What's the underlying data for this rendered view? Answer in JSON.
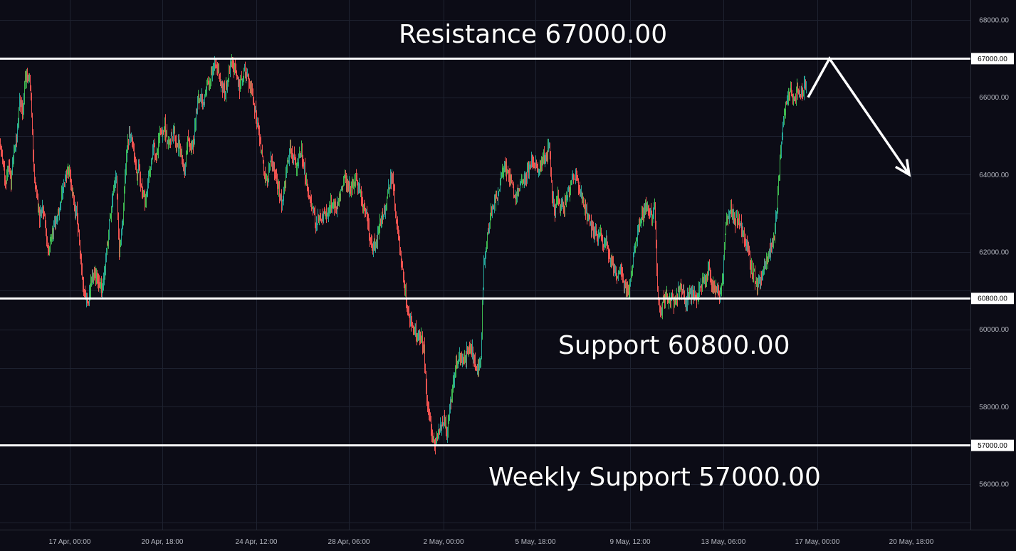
{
  "chart_data": {
    "type": "candlestick",
    "ylim": [
      54800,
      68400
    ],
    "y_ticks": [
      "68000.00",
      "66000.00",
      "64000.00",
      "62000.00",
      "60000.00",
      "58000.00",
      "56000.00"
    ],
    "y_tick_values": [
      68000,
      66000,
      64000,
      62000,
      60000,
      58000,
      56000
    ],
    "x_ticks": [
      "17 Apr, 00:00",
      "20 Apr, 18:00",
      "24 Apr, 12:00",
      "28 Apr, 06:00",
      "2 May, 00:00",
      "5 May, 18:00",
      "9 May, 12:00",
      "13 May, 06:00",
      "17 May, 00:00",
      "20 May, 18:00"
    ],
    "grid": true,
    "levels": [
      {
        "value": 67000,
        "tag": "67000.00",
        "label": "Resistance 67000.00"
      },
      {
        "value": 60800,
        "tag": "60800.00",
        "label": "Support 60800.00"
      },
      {
        "value": 57000,
        "tag": "57000.00",
        "label": "Weekly Support 57000.00"
      }
    ],
    "price_path": [
      [
        0,
        64800
      ],
      [
        4,
        64500
      ],
      [
        8,
        63700
      ],
      [
        12,
        64300
      ],
      [
        16,
        63800
      ],
      [
        20,
        64600
      ],
      [
        24,
        64900
      ],
      [
        28,
        65900
      ],
      [
        32,
        65600
      ],
      [
        36,
        66500
      ],
      [
        40,
        66700
      ],
      [
        44,
        66000
      ],
      [
        48,
        64200
      ],
      [
        52,
        63500
      ],
      [
        56,
        62900
      ],
      [
        60,
        63200
      ],
      [
        64,
        62700
      ],
      [
        68,
        62000
      ],
      [
        72,
        62300
      ],
      [
        76,
        62600
      ],
      [
        80,
        62900
      ],
      [
        84,
        63100
      ],
      [
        88,
        63600
      ],
      [
        92,
        63900
      ],
      [
        96,
        64200
      ],
      [
        100,
        63800
      ],
      [
        104,
        63300
      ],
      [
        108,
        63000
      ],
      [
        112,
        62200
      ],
      [
        116,
        61300
      ],
      [
        120,
        60900
      ],
      [
        124,
        60600
      ],
      [
        128,
        61200
      ],
      [
        132,
        61500
      ],
      [
        136,
        61300
      ],
      [
        140,
        61100
      ],
      [
        144,
        61000
      ],
      [
        148,
        61600
      ],
      [
        152,
        62300
      ],
      [
        156,
        63100
      ],
      [
        160,
        63600
      ],
      [
        164,
        63900
      ],
      [
        168,
        62000
      ],
      [
        172,
        62500
      ],
      [
        176,
        64000
      ],
      [
        180,
        64800
      ],
      [
        184,
        65100
      ],
      [
        188,
        64600
      ],
      [
        192,
        64000
      ],
      [
        196,
        64100
      ],
      [
        200,
        63700
      ],
      [
        204,
        63300
      ],
      [
        208,
        63800
      ],
      [
        212,
        64300
      ],
      [
        216,
        64700
      ],
      [
        220,
        64500
      ],
      [
        224,
        65000
      ],
      [
        228,
        64900
      ],
      [
        232,
        65300
      ],
      [
        236,
        64800
      ],
      [
        240,
        64900
      ],
      [
        244,
        65100
      ],
      [
        248,
        64800
      ],
      [
        252,
        64700
      ],
      [
        256,
        64400
      ],
      [
        260,
        64100
      ],
      [
        264,
        64900
      ],
      [
        268,
        64600
      ],
      [
        272,
        64800
      ],
      [
        276,
        65600
      ],
      [
        280,
        66000
      ],
      [
        284,
        65900
      ],
      [
        288,
        65900
      ],
      [
        292,
        66500
      ],
      [
        296,
        66400
      ],
      [
        300,
        66700
      ],
      [
        304,
        66900
      ],
      [
        308,
        66500
      ],
      [
        312,
        66300
      ],
      [
        316,
        66100
      ],
      [
        320,
        66500
      ],
      [
        324,
        66800
      ],
      [
        328,
        66900
      ],
      [
        332,
        66600
      ],
      [
        336,
        66200
      ],
      [
        340,
        66500
      ],
      [
        344,
        66700
      ],
      [
        348,
        66600
      ],
      [
        352,
        66300
      ],
      [
        356,
        66000
      ],
      [
        360,
        65500
      ],
      [
        364,
        65000
      ],
      [
        368,
        64600
      ],
      [
        372,
        64000
      ],
      [
        376,
        63800
      ],
      [
        380,
        64400
      ],
      [
        384,
        64200
      ],
      [
        388,
        63900
      ],
      [
        392,
        63600
      ],
      [
        396,
        63300
      ],
      [
        400,
        63700
      ],
      [
        404,
        64300
      ],
      [
        408,
        64700
      ],
      [
        412,
        64500
      ],
      [
        416,
        64200
      ],
      [
        420,
        64400
      ],
      [
        424,
        64600
      ],
      [
        428,
        64100
      ],
      [
        432,
        63600
      ],
      [
        436,
        63400
      ],
      [
        440,
        63100
      ],
      [
        444,
        62700
      ],
      [
        448,
        62900
      ],
      [
        452,
        62800
      ],
      [
        456,
        63100
      ],
      [
        460,
        62900
      ],
      [
        464,
        63200
      ],
      [
        468,
        63300
      ],
      [
        472,
        63100
      ],
      [
        476,
        63400
      ],
      [
        480,
        63600
      ],
      [
        484,
        63900
      ],
      [
        488,
        63800
      ],
      [
        492,
        63600
      ],
      [
        496,
        63700
      ],
      [
        500,
        63900
      ],
      [
        504,
        63700
      ],
      [
        508,
        63400
      ],
      [
        512,
        63200
      ],
      [
        516,
        62900
      ],
      [
        520,
        62400
      ],
      [
        524,
        62100
      ],
      [
        528,
        62300
      ],
      [
        532,
        62500
      ],
      [
        536,
        62900
      ],
      [
        540,
        63000
      ],
      [
        544,
        63400
      ],
      [
        548,
        63800
      ],
      [
        552,
        64000
      ],
      [
        556,
        63000
      ],
      [
        560,
        62400
      ],
      [
        564,
        61800
      ],
      [
        568,
        61200
      ],
      [
        572,
        60700
      ],
      [
        576,
        60300
      ],
      [
        580,
        60100
      ],
      [
        584,
        59900
      ],
      [
        588,
        59700
      ],
      [
        592,
        59800
      ],
      [
        596,
        59500
      ],
      [
        600,
        58200
      ],
      [
        604,
        57700
      ],
      [
        608,
        57200
      ],
      [
        612,
        57100
      ],
      [
        616,
        57400
      ],
      [
        620,
        57500
      ],
      [
        624,
        57800
      ],
      [
        628,
        57300
      ],
      [
        632,
        57900
      ],
      [
        636,
        58500
      ],
      [
        640,
        59000
      ],
      [
        644,
        59200
      ],
      [
        648,
        59300
      ],
      [
        652,
        59100
      ],
      [
        656,
        59400
      ],
      [
        660,
        59600
      ],
      [
        664,
        59400
      ],
      [
        668,
        59100
      ],
      [
        672,
        59000
      ],
      [
        676,
        59300
      ],
      [
        680,
        61800
      ],
      [
        684,
        62200
      ],
      [
        688,
        62800
      ],
      [
        692,
        63200
      ],
      [
        696,
        63300
      ],
      [
        700,
        63500
      ],
      [
        704,
        63800
      ],
      [
        708,
        64300
      ],
      [
        712,
        64100
      ],
      [
        716,
        63900
      ],
      [
        720,
        63700
      ],
      [
        724,
        63400
      ],
      [
        728,
        63600
      ],
      [
        732,
        63800
      ],
      [
        736,
        63900
      ],
      [
        740,
        64000
      ],
      [
        744,
        64200
      ],
      [
        748,
        64400
      ],
      [
        752,
        64300
      ],
      [
        756,
        64100
      ],
      [
        760,
        64200
      ],
      [
        764,
        64500
      ],
      [
        768,
        64400
      ],
      [
        772,
        64800
      ],
      [
        776,
        63500
      ],
      [
        780,
        63000
      ],
      [
        784,
        63400
      ],
      [
        788,
        63200
      ],
      [
        792,
        63100
      ],
      [
        796,
        63400
      ],
      [
        800,
        63600
      ],
      [
        804,
        63900
      ],
      [
        808,
        64000
      ],
      [
        812,
        63800
      ],
      [
        816,
        63500
      ],
      [
        820,
        63300
      ],
      [
        824,
        63000
      ],
      [
        828,
        62800
      ],
      [
        832,
        62600
      ],
      [
        836,
        62500
      ],
      [
        840,
        62300
      ],
      [
        844,
        62400
      ],
      [
        848,
        62200
      ],
      [
        852,
        62300
      ],
      [
        856,
        61900
      ],
      [
        860,
        61700
      ],
      [
        864,
        61500
      ],
      [
        868,
        61300
      ],
      [
        872,
        61600
      ],
      [
        876,
        61100
      ],
      [
        880,
        61000
      ],
      [
        884,
        61100
      ],
      [
        888,
        61600
      ],
      [
        892,
        62100
      ],
      [
        896,
        62500
      ],
      [
        900,
        62900
      ],
      [
        904,
        63000
      ],
      [
        908,
        63200
      ],
      [
        912,
        63000
      ],
      [
        916,
        62900
      ],
      [
        920,
        63100
      ],
      [
        924,
        61000
      ],
      [
        928,
        60400
      ],
      [
        932,
        60700
      ],
      [
        936,
        60900
      ],
      [
        940,
        60600
      ],
      [
        944,
        60800
      ],
      [
        948,
        60700
      ],
      [
        952,
        60900
      ],
      [
        956,
        61200
      ],
      [
        960,
        60900
      ],
      [
        964,
        60700
      ],
      [
        968,
        60900
      ],
      [
        972,
        61000
      ],
      [
        976,
        60800
      ],
      [
        980,
        60900
      ],
      [
        984,
        61100
      ],
      [
        988,
        61300
      ],
      [
        992,
        61300
      ],
      [
        996,
        61600
      ],
      [
        1000,
        61200
      ],
      [
        1004,
        61100
      ],
      [
        1008,
        61000
      ],
      [
        1012,
        60900
      ],
      [
        1016,
        61500
      ],
      [
        1020,
        62700
      ],
      [
        1024,
        63000
      ],
      [
        1028,
        63100
      ],
      [
        1032,
        62800
      ],
      [
        1036,
        62900
      ],
      [
        1040,
        62800
      ],
      [
        1044,
        62500
      ],
      [
        1048,
        62200
      ],
      [
        1052,
        62000
      ],
      [
        1056,
        61500
      ],
      [
        1060,
        61400
      ],
      [
        1064,
        61200
      ],
      [
        1068,
        61300
      ],
      [
        1072,
        61500
      ],
      [
        1076,
        61600
      ],
      [
        1080,
        61900
      ],
      [
        1084,
        62100
      ],
      [
        1088,
        62400
      ],
      [
        1092,
        63200
      ],
      [
        1096,
        64300
      ],
      [
        1100,
        65200
      ],
      [
        1104,
        65800
      ],
      [
        1108,
        66200
      ],
      [
        1112,
        66100
      ],
      [
        1116,
        65900
      ],
      [
        1120,
        66300
      ],
      [
        1124,
        66000
      ],
      [
        1128,
        66100
      ],
      [
        1132,
        66400
      ]
    ],
    "projection": [
      [
        1135,
        66000
      ],
      [
        1165,
        67000
      ],
      [
        1277,
        64000
      ]
    ],
    "projection_color": "#ffffff",
    "up_color": "#26a69a",
    "up_color_bright": "#3fb950",
    "down_color": "#ef5350"
  }
}
